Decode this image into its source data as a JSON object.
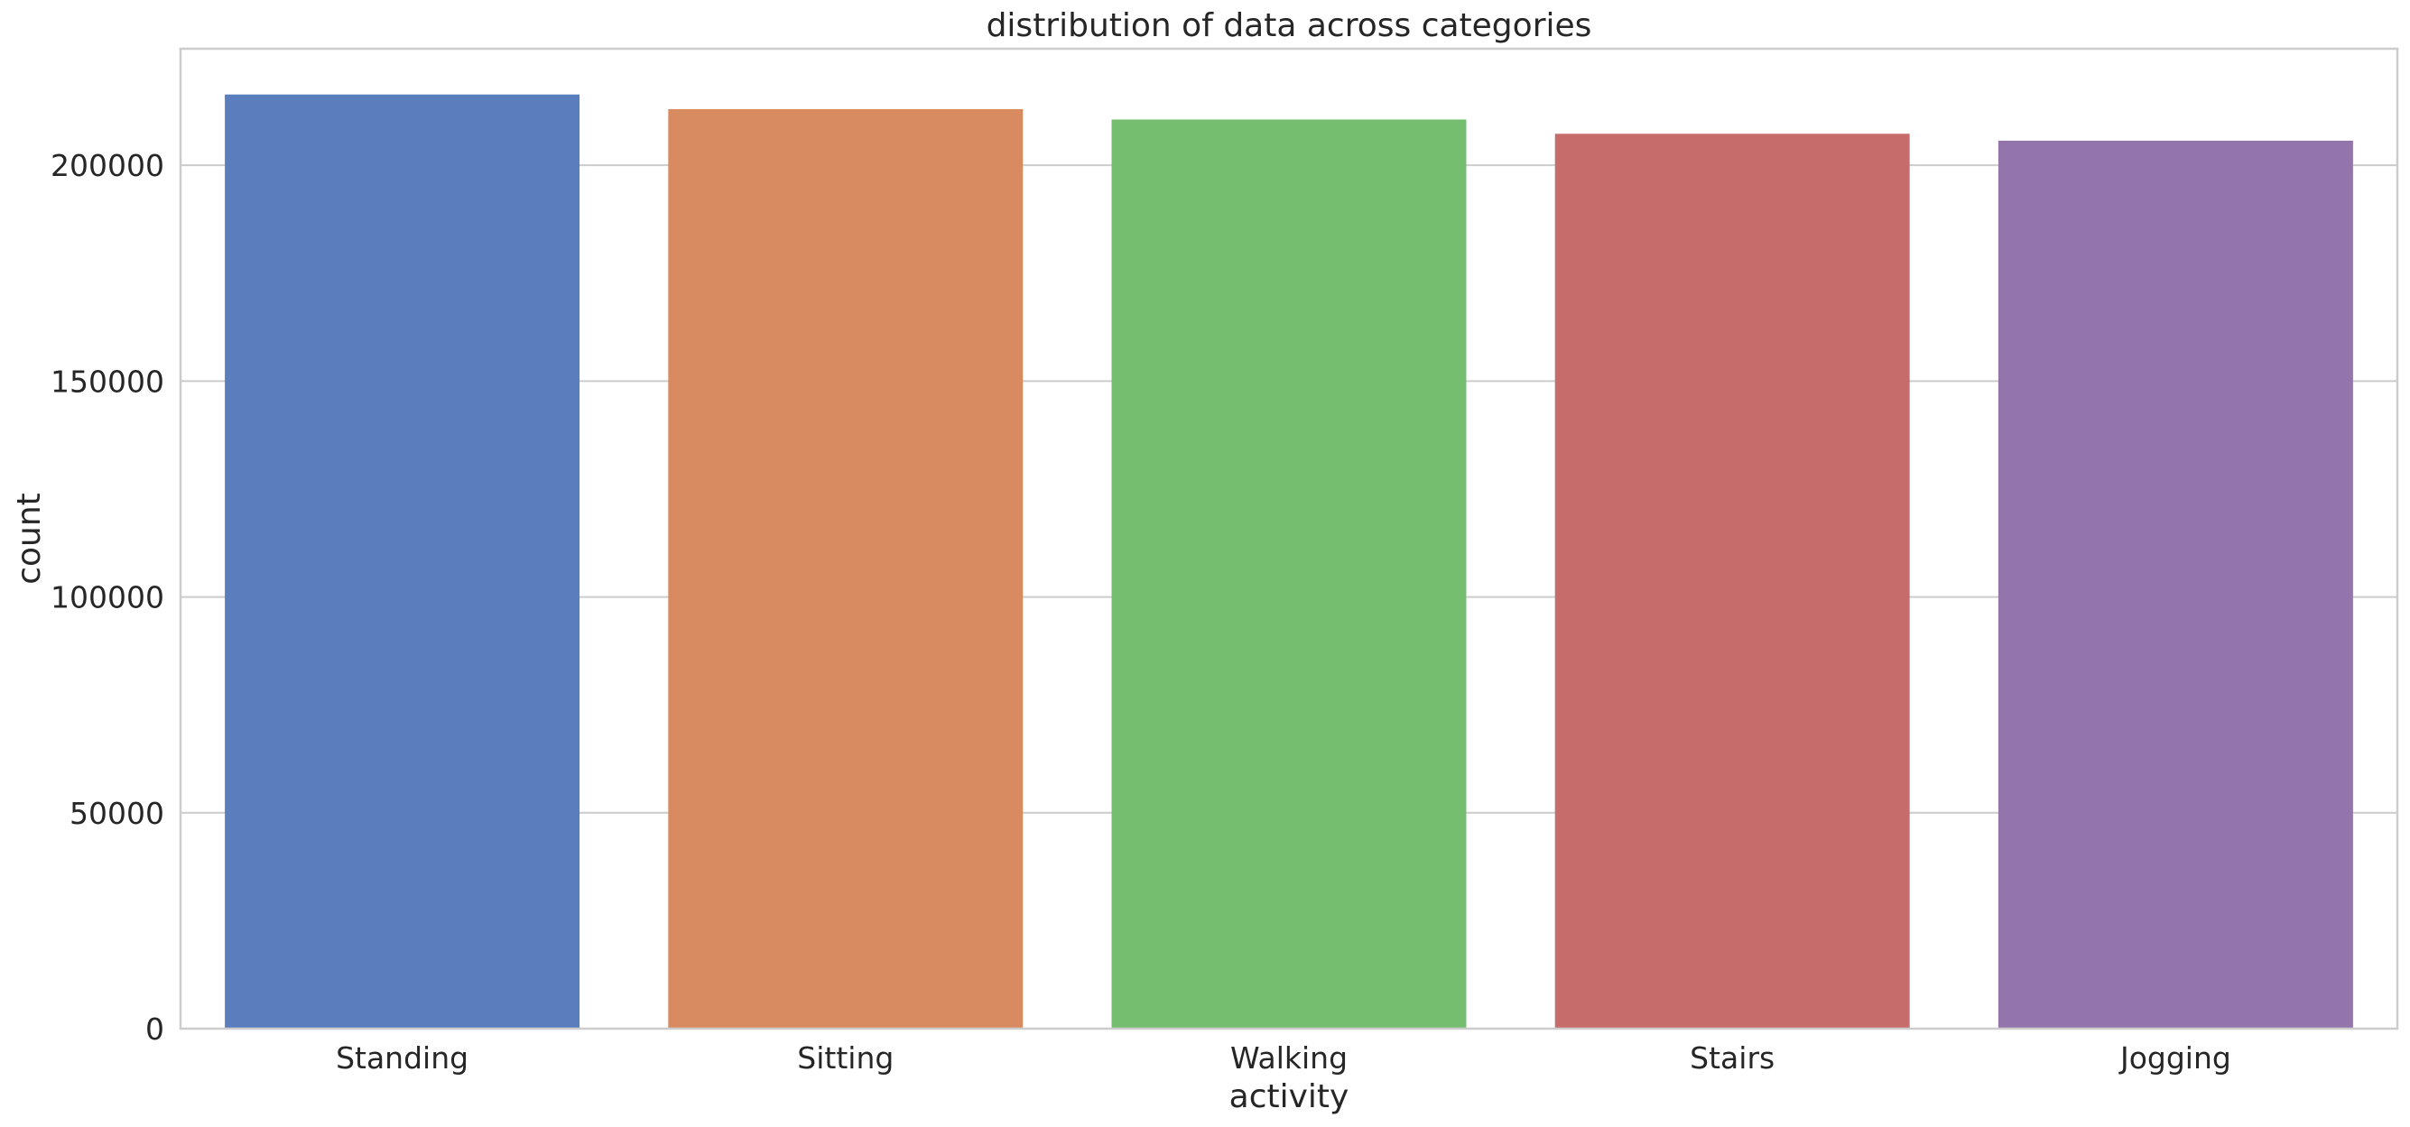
{
  "chart_data": {
    "type": "bar",
    "title": "distribution of data across categories",
    "xlabel": "activity",
    "ylabel": "count",
    "categories": [
      "Standing",
      "Sitting",
      "Walking",
      "Stairs",
      "Jogging"
    ],
    "values": [
      216400,
      213000,
      210600,
      207300,
      205700
    ],
    "colors": [
      "#5a7ebd",
      "#d88b60",
      "#75be6f",
      "#c66d6c",
      "#9375ab"
    ],
    "ylim": [
      0,
      227000
    ],
    "yticks": [
      0,
      50000,
      100000,
      150000,
      200000
    ],
    "grid": "horizontal",
    "legend": "none"
  }
}
